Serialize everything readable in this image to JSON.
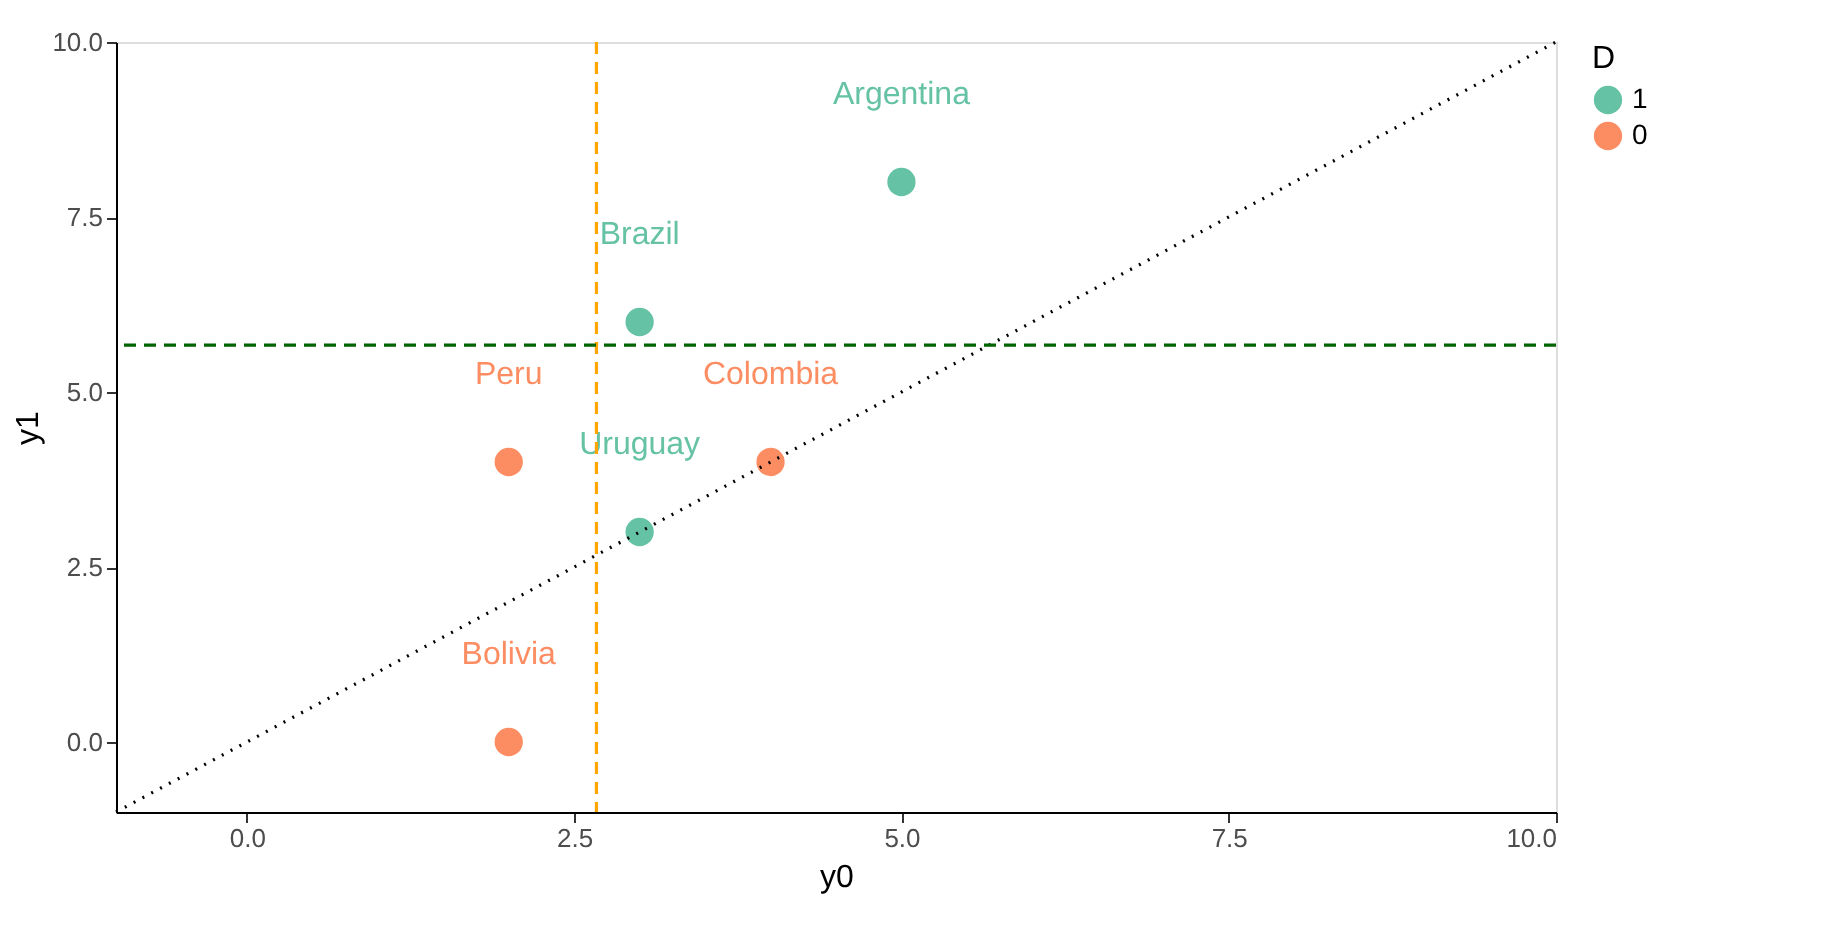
{
  "chart_data": {
    "type": "scatter",
    "xlabel": "y0",
    "ylabel": "y1",
    "legend_title": "D",
    "legend": "right",
    "grid": false,
    "marker": "circle",
    "xlim": [
      -1,
      10
    ],
    "ylim": [
      -1,
      10
    ],
    "xticks": [
      {
        "value": 0,
        "label": "0.0"
      },
      {
        "value": 2.5,
        "label": "2.5"
      },
      {
        "value": 5,
        "label": "5.0"
      },
      {
        "value": 7.5,
        "label": "7.5"
      },
      {
        "value": 10,
        "label": "10.0"
      }
    ],
    "yticks": [
      {
        "value": 0,
        "label": "0.0"
      },
      {
        "value": 2.5,
        "label": "2.5"
      },
      {
        "value": 5,
        "label": "5.0"
      },
      {
        "value": 7.5,
        "label": "7.5"
      },
      {
        "value": 10,
        "label": "10.0"
      }
    ],
    "series": [
      {
        "name": "1",
        "color": "#66c2a5",
        "x": [
          5,
          3,
          3
        ],
        "values": [
          8,
          6,
          3
        ],
        "value_labels": [
          "Argentina",
          "Brazil",
          "Uruguay"
        ]
      },
      {
        "name": "0",
        "color": "#fc8d62",
        "x": [
          2,
          4,
          2
        ],
        "values": [
          4,
          4,
          0
        ],
        "value_labels": [
          "Peru",
          "Colombia",
          "Bolivia"
        ]
      },
      {
        "type": "line",
        "color": "#000000",
        "line_style": "dotted",
        "marker": "none",
        "x": [
          -1,
          10
        ],
        "values": [
          -1,
          10
        ]
      }
    ],
    "ref_lines": [
      {
        "axis": "x",
        "value": 2.67,
        "color": "#ffa500",
        "line_style": "dashed"
      },
      {
        "axis": "y",
        "value": 5.67,
        "color": "#006400",
        "line_style": "dashed"
      }
    ]
  }
}
